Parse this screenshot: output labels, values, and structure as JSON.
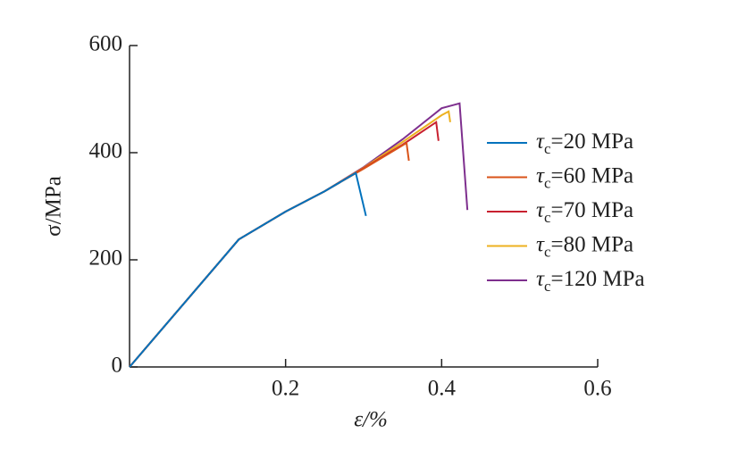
{
  "chart_data": {
    "type": "line",
    "x_label": "ε/%",
    "y_label": "σ/MPa",
    "xlim": [
      0,
      0.6
    ],
    "ylim": [
      0,
      600
    ],
    "xticks": [
      0.2,
      0.4,
      0.6
    ],
    "yticks": [
      0,
      200,
      400,
      600
    ],
    "legend": "right",
    "series": [
      {
        "name": "τc=20 MPa",
        "color": "#0072BD",
        "x": [
          0,
          0.14,
          0.2,
          0.25,
          0.29,
          0.303
        ],
        "values": [
          0,
          238,
          290,
          328,
          362,
          282
        ]
      },
      {
        "name": "τc=60 MPa",
        "color": "#D95319",
        "x": [
          0,
          0.14,
          0.2,
          0.25,
          0.3,
          0.355,
          0.358
        ],
        "values": [
          0,
          238,
          290,
          328,
          370,
          418,
          385
        ]
      },
      {
        "name": "τc=70 MPa",
        "color": "#C8202F",
        "x": [
          0,
          0.14,
          0.2,
          0.25,
          0.3,
          0.35,
          0.393,
          0.396
        ],
        "values": [
          0,
          238,
          290,
          328,
          371,
          415,
          457,
          422
        ]
      },
      {
        "name": "τc=80 MPa",
        "color": "#EDB120",
        "x": [
          0,
          0.14,
          0.2,
          0.25,
          0.3,
          0.35,
          0.4,
          0.409,
          0.411
        ],
        "values": [
          0,
          238,
          290,
          328,
          372,
          420,
          470,
          477,
          457
        ]
      },
      {
        "name": "τc=120 MPa",
        "color": "#7E2F8E",
        "x": [
          0,
          0.14,
          0.2,
          0.25,
          0.3,
          0.35,
          0.4,
          0.423,
          0.433
        ],
        "values": [
          0,
          238,
          290,
          328,
          373,
          425,
          483,
          492,
          293
        ]
      }
    ]
  }
}
